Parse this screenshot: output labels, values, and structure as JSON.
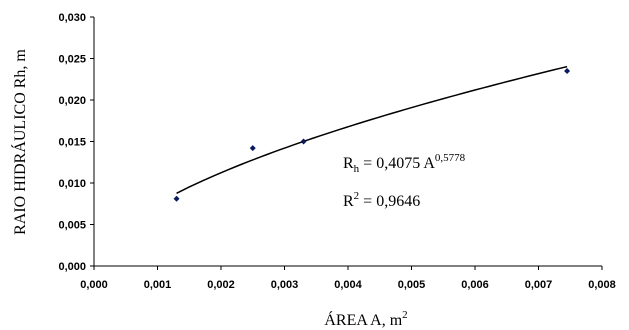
{
  "chart_data": {
    "type": "scatter",
    "xlabel": "ÁREA A, m",
    "xlabel_sup": "2",
    "ylabel": "RAIO HIDRÁULICO Rh, m",
    "xlim": [
      0,
      0.008
    ],
    "ylim": [
      0,
      0.03
    ],
    "x_ticks": [
      "0,000",
      "0,001",
      "0,002",
      "0,003",
      "0,004",
      "0,005",
      "0,006",
      "0,007",
      "0,008"
    ],
    "y_ticks": [
      "0,000",
      "0,005",
      "0,010",
      "0,015",
      "0,020",
      "0,025",
      "0,030"
    ],
    "grid": false,
    "points": [
      {
        "x": 0.0013,
        "y": 0.0081
      },
      {
        "x": 0.0025,
        "y": 0.0142
      },
      {
        "x": 0.0033,
        "y": 0.015
      },
      {
        "x": 0.00745,
        "y": 0.0235
      }
    ],
    "trendline": {
      "type": "power",
      "coefficient": 0.4075,
      "exponent": 0.5778,
      "x_start": 0.0013,
      "x_end": 0.00745
    },
    "equation": {
      "lhs": "R",
      "lhs_sub": "h",
      "mid": " = 0,4075 A",
      "exp": "0,5778"
    },
    "r_squared": {
      "lhs": "R",
      "lhs_sup": "2",
      "rest": " = 0,9646"
    },
    "colors": {
      "marker": "#0b1a5c",
      "line": "#000000"
    }
  }
}
